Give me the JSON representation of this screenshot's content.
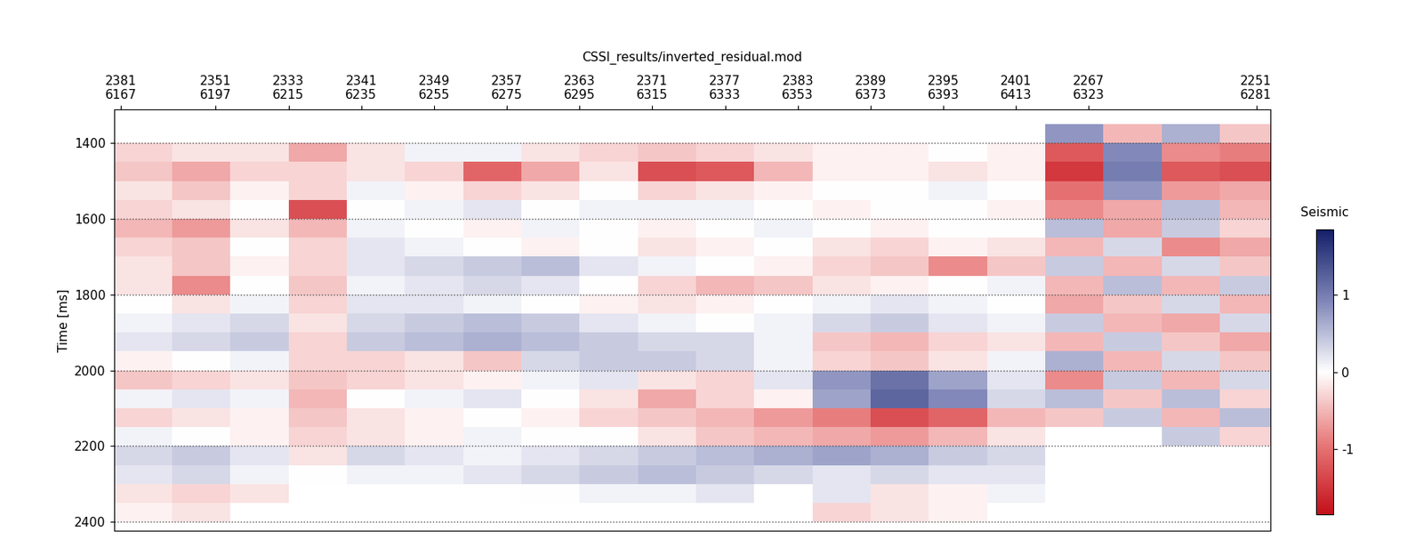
{
  "chart_data": {
    "type": "heatmap",
    "title": "CSSI_results/inverted_residual.mod",
    "y_label": "Time [ms]",
    "colorbar_label": "Seismic",
    "x_edges": [
      0,
      16,
      32,
      48,
      64,
      80,
      96,
      112,
      128,
      144,
      160,
      176,
      192,
      208,
      224,
      240,
      256,
      272,
      288,
      304,
      320
    ],
    "y_edges": [
      1350,
      1400,
      1450,
      1500,
      1550,
      1600,
      1650,
      1700,
      1750,
      1800,
      1850,
      1900,
      1950,
      2000,
      2050,
      2100,
      2150,
      2200,
      2250,
      2300,
      2350,
      2400
    ],
    "cells": [
      [
        null,
        null,
        null,
        null,
        null,
        null,
        null,
        null,
        null,
        null,
        null,
        null,
        null,
        null,
        null,
        null,
        0.8,
        -0.5,
        0.6,
        -0.4
      ],
      [
        -0.3,
        -0.2,
        -0.2,
        -0.6,
        -0.2,
        0.1,
        0.1,
        -0.2,
        -0.3,
        -0.4,
        -0.3,
        -0.2,
        -0.1,
        -0.1,
        0.0,
        -0.1,
        -1.2,
        0.9,
        -0.8,
        -0.9
      ],
      [
        -0.4,
        -0.6,
        -0.3,
        -0.3,
        -0.2,
        -0.3,
        -1.1,
        -0.6,
        -0.2,
        -1.3,
        -1.2,
        -0.5,
        -0.1,
        -0.1,
        -0.2,
        -0.1,
        -1.5,
        1.0,
        -1.2,
        -1.3
      ],
      [
        -0.2,
        -0.4,
        -0.1,
        -0.3,
        0.1,
        -0.1,
        -0.3,
        -0.2,
        0.0,
        -0.3,
        -0.2,
        -0.1,
        0.0,
        0.0,
        0.1,
        0.0,
        -1.0,
        0.8,
        -0.7,
        -0.6
      ],
      [
        -0.3,
        -0.2,
        0.0,
        -1.3,
        0.0,
        0.1,
        0.2,
        0.0,
        0.1,
        0.1,
        0.1,
        0.0,
        -0.1,
        0.0,
        0.0,
        -0.1,
        -0.8,
        -0.6,
        0.5,
        -0.5
      ],
      [
        -0.5,
        -0.7,
        -0.2,
        -0.5,
        0.1,
        0.0,
        -0.1,
        0.1,
        0.0,
        -0.1,
        0.0,
        0.1,
        0.0,
        -0.1,
        0.0,
        0.0,
        0.5,
        -0.6,
        0.4,
        -0.3
      ],
      [
        -0.3,
        -0.4,
        0.0,
        -0.3,
        0.2,
        0.1,
        0.0,
        -0.1,
        0.0,
        -0.2,
        -0.1,
        0.0,
        -0.2,
        -0.3,
        -0.1,
        -0.2,
        -0.5,
        0.3,
        -0.8,
        -0.6
      ],
      [
        -0.2,
        -0.4,
        -0.1,
        -0.3,
        0.2,
        0.3,
        0.4,
        0.5,
        0.2,
        0.1,
        0.0,
        -0.1,
        -0.3,
        -0.4,
        -0.8,
        -0.4,
        0.4,
        -0.5,
        0.3,
        -0.4
      ],
      [
        -0.2,
        -0.8,
        0.0,
        -0.4,
        0.1,
        0.2,
        0.3,
        0.2,
        0.0,
        -0.3,
        -0.5,
        -0.4,
        -0.2,
        -0.1,
        0.0,
        0.1,
        -0.5,
        0.5,
        -0.5,
        0.4
      ],
      [
        0.0,
        -0.2,
        0.1,
        -0.3,
        0.2,
        0.2,
        0.1,
        0.0,
        -0.1,
        -0.2,
        -0.1,
        0.0,
        0.1,
        0.2,
        0.1,
        0.0,
        -0.6,
        -0.4,
        0.3,
        -0.5
      ],
      [
        0.1,
        0.2,
        0.3,
        -0.2,
        0.3,
        0.4,
        0.5,
        0.4,
        0.2,
        0.1,
        0.0,
        0.1,
        0.3,
        0.4,
        0.2,
        0.1,
        0.4,
        -0.5,
        -0.6,
        0.3
      ],
      [
        0.2,
        0.3,
        0.4,
        -0.3,
        0.4,
        0.5,
        0.6,
        0.5,
        0.4,
        0.3,
        0.3,
        0.1,
        -0.4,
        -0.5,
        -0.3,
        -0.2,
        -0.5,
        0.4,
        -0.4,
        -0.6
      ],
      [
        -0.1,
        0.0,
        0.1,
        -0.3,
        -0.3,
        -0.2,
        -0.4,
        0.3,
        0.4,
        0.4,
        0.3,
        0.1,
        -0.3,
        -0.4,
        -0.2,
        0.1,
        0.6,
        -0.5,
        0.3,
        -0.4
      ],
      [
        -0.4,
        -0.3,
        -0.2,
        -0.4,
        -0.3,
        -0.2,
        -0.1,
        0.1,
        0.2,
        -0.2,
        -0.3,
        0.2,
        0.8,
        1.1,
        0.7,
        0.2,
        -0.8,
        0.4,
        -0.5,
        0.3
      ],
      [
        0.1,
        0.2,
        0.1,
        -0.5,
        0.0,
        0.1,
        0.2,
        0.0,
        -0.2,
        -0.6,
        -0.3,
        -0.1,
        0.7,
        1.2,
        0.9,
        0.3,
        0.5,
        -0.4,
        0.5,
        -0.3
      ],
      [
        -0.3,
        -0.2,
        -0.1,
        -0.4,
        -0.2,
        -0.1,
        0.0,
        -0.1,
        -0.3,
        -0.4,
        -0.5,
        -0.7,
        -0.9,
        -1.3,
        -1.1,
        -0.5,
        -0.4,
        0.4,
        -0.5,
        0.5
      ],
      [
        0.1,
        0.0,
        -0.1,
        -0.3,
        -0.2,
        -0.1,
        0.1,
        0.0,
        0.0,
        -0.2,
        -0.4,
        -0.5,
        -0.6,
        -0.7,
        -0.5,
        -0.2,
        null,
        null,
        0.4,
        -0.3
      ],
      [
        0.3,
        0.4,
        0.2,
        -0.2,
        0.3,
        0.2,
        0.1,
        0.2,
        0.3,
        0.4,
        0.5,
        0.6,
        0.7,
        0.6,
        0.4,
        0.3,
        null,
        null,
        null,
        null
      ],
      [
        0.2,
        0.3,
        0.1,
        0.0,
        0.1,
        0.1,
        0.2,
        0.3,
        0.4,
        0.5,
        0.4,
        0.3,
        0.2,
        0.3,
        0.2,
        0.2,
        null,
        null,
        null,
        null
      ],
      [
        -0.2,
        -0.3,
        -0.2,
        null,
        null,
        null,
        null,
        0.0,
        0.1,
        0.1,
        0.2,
        null,
        0.2,
        -0.2,
        -0.1,
        0.1,
        null,
        null,
        null,
        null
      ],
      [
        -0.1,
        -0.2,
        null,
        null,
        null,
        null,
        null,
        null,
        null,
        null,
        null,
        null,
        -0.3,
        -0.2,
        -0.1,
        null,
        null,
        null,
        null,
        null
      ]
    ],
    "xlim": [
      0,
      318
    ],
    "xticks": [
      {
        "value": 2,
        "label": "2381\n6167"
      },
      {
        "value": 28,
        "label": "2351\n6197"
      },
      {
        "value": 48,
        "label": "2333\n6215"
      },
      {
        "value": 68,
        "label": "2341\n6235"
      },
      {
        "value": 88,
        "label": "2349\n6255"
      },
      {
        "value": 108,
        "label": "2357\n6275"
      },
      {
        "value": 128,
        "label": "2363\n6295"
      },
      {
        "value": 148,
        "label": "2371\n6315"
      },
      {
        "value": 168,
        "label": "2377\n6333"
      },
      {
        "value": 188,
        "label": "2383\n6353"
      },
      {
        "value": 208,
        "label": "2389\n6373"
      },
      {
        "value": 228,
        "label": "2395\n6393"
      },
      {
        "value": 248,
        "label": "2401\n6413"
      },
      {
        "value": 268,
        "label": "2267\n6323"
      },
      {
        "value": 314,
        "label": "2251\n6281"
      }
    ],
    "ylim": [
      2423,
      1311
    ],
    "yticks": [
      1400,
      1600,
      1800,
      2000,
      2200,
      2400
    ],
    "grid": true,
    "colorbar_range": [
      -1.85,
      1.85
    ],
    "colorbar_ticks": [
      -1,
      0,
      1
    ]
  }
}
